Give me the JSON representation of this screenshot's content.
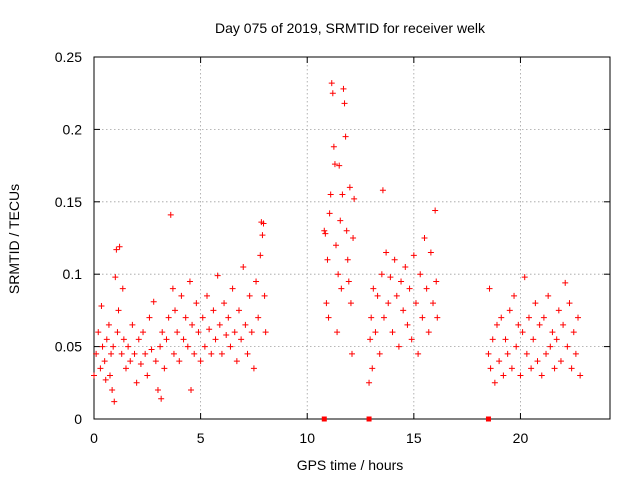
{
  "chart_data": {
    "type": "scatter",
    "title": "Day 075 of 2019, SRMTID for receiver welk",
    "xlabel": "GPS time / hours",
    "ylabel": "SRMTID / TECUs",
    "xlim": [
      0,
      24.2
    ],
    "ylim": [
      0,
      0.25
    ],
    "x_ticks": [
      0,
      5,
      10,
      15,
      20
    ],
    "y_ticks": [
      0,
      0.05,
      0.1,
      0.15,
      0.2,
      0.25
    ],
    "x_tick_labels": [
      "0",
      "5",
      "10",
      "15",
      "20"
    ],
    "y_tick_labels": [
      "0",
      "0.05",
      "0.1",
      "0.15",
      "0.2",
      "0.25"
    ],
    "grid": true,
    "marker": "+",
    "color": "#ff0000",
    "series": [
      {
        "name": "SRMTID",
        "points": [
          [
            0.0,
            0.03
          ],
          [
            0.1,
            0.045
          ],
          [
            0.2,
            0.06
          ],
          [
            0.3,
            0.035
          ],
          [
            0.35,
            0.078
          ],
          [
            0.4,
            0.05
          ],
          [
            0.5,
            0.04
          ],
          [
            0.55,
            0.027
          ],
          [
            0.6,
            0.055
          ],
          [
            0.7,
            0.065
          ],
          [
            0.75,
            0.03
          ],
          [
            0.8,
            0.045
          ],
          [
            0.85,
            0.02
          ],
          [
            0.9,
            0.05
          ],
          [
            0.95,
            0.012
          ],
          [
            1.0,
            0.098
          ],
          [
            1.05,
            0.117
          ],
          [
            1.1,
            0.06
          ],
          [
            1.15,
            0.075
          ],
          [
            1.2,
            0.119
          ],
          [
            1.3,
            0.045
          ],
          [
            1.35,
            0.09
          ],
          [
            1.4,
            0.055
          ],
          [
            1.5,
            0.035
          ],
          [
            1.6,
            0.05
          ],
          [
            1.7,
            0.04
          ],
          [
            1.8,
            0.065
          ],
          [
            1.9,
            0.045
          ],
          [
            2.0,
            0.025
          ],
          [
            2.1,
            0.055
          ],
          [
            2.2,
            0.038
          ],
          [
            2.3,
            0.06
          ],
          [
            2.4,
            0.045
          ],
          [
            2.5,
            0.03
          ],
          [
            2.6,
            0.07
          ],
          [
            2.7,
            0.048
          ],
          [
            2.8,
            0.081
          ],
          [
            2.9,
            0.04
          ],
          [
            3.0,
            0.02
          ],
          [
            3.1,
            0.05
          ],
          [
            3.15,
            0.014
          ],
          [
            3.2,
            0.06
          ],
          [
            3.3,
            0.035
          ],
          [
            3.4,
            0.055
          ],
          [
            3.5,
            0.07
          ],
          [
            3.6,
            0.141
          ],
          [
            3.7,
            0.09
          ],
          [
            3.75,
            0.045
          ],
          [
            3.8,
            0.075
          ],
          [
            3.9,
            0.06
          ],
          [
            4.0,
            0.04
          ],
          [
            4.1,
            0.085
          ],
          [
            4.2,
            0.055
          ],
          [
            4.3,
            0.07
          ],
          [
            4.4,
            0.05
          ],
          [
            4.5,
            0.095
          ],
          [
            4.55,
            0.02
          ],
          [
            4.6,
            0.065
          ],
          [
            4.7,
            0.045
          ],
          [
            4.8,
            0.08
          ],
          [
            4.9,
            0.06
          ],
          [
            5.0,
            0.04
          ],
          [
            5.1,
            0.07
          ],
          [
            5.2,
            0.05
          ],
          [
            5.3,
            0.085
          ],
          [
            5.4,
            0.062
          ],
          [
            5.5,
            0.045
          ],
          [
            5.6,
            0.075
          ],
          [
            5.7,
            0.055
          ],
          [
            5.8,
            0.099
          ],
          [
            5.9,
            0.065
          ],
          [
            6.0,
            0.045
          ],
          [
            6.1,
            0.08
          ],
          [
            6.2,
            0.058
          ],
          [
            6.3,
            0.07
          ],
          [
            6.4,
            0.05
          ],
          [
            6.5,
            0.09
          ],
          [
            6.6,
            0.06
          ],
          [
            6.7,
            0.04
          ],
          [
            6.8,
            0.075
          ],
          [
            6.9,
            0.055
          ],
          [
            7.0,
            0.105
          ],
          [
            7.1,
            0.065
          ],
          [
            7.2,
            0.045
          ],
          [
            7.3,
            0.085
          ],
          [
            7.4,
            0.06
          ],
          [
            7.5,
            0.035
          ],
          [
            7.6,
            0.095
          ],
          [
            7.7,
            0.07
          ],
          [
            7.8,
            0.113
          ],
          [
            7.85,
            0.136
          ],
          [
            7.9,
            0.127
          ],
          [
            7.95,
            0.135
          ],
          [
            8.0,
            0.085
          ],
          [
            8.05,
            0.06
          ],
          [
            10.8,
            0.13
          ],
          [
            10.85,
            0.128
          ],
          [
            10.9,
            0.08
          ],
          [
            10.95,
            0.11
          ],
          [
            11.0,
            0.07
          ],
          [
            11.05,
            0.142
          ],
          [
            11.1,
            0.155
          ],
          [
            11.15,
            0.232
          ],
          [
            11.2,
            0.225
          ],
          [
            11.25,
            0.188
          ],
          [
            11.3,
            0.176
          ],
          [
            11.35,
            0.12
          ],
          [
            11.4,
            0.06
          ],
          [
            11.45,
            0.1
          ],
          [
            11.5,
            0.175
          ],
          [
            11.55,
            0.137
          ],
          [
            11.6,
            0.09
          ],
          [
            11.65,
            0.155
          ],
          [
            11.7,
            0.228
          ],
          [
            11.75,
            0.218
          ],
          [
            11.8,
            0.195
          ],
          [
            11.85,
            0.13
          ],
          [
            11.9,
            0.11
          ],
          [
            11.95,
            0.095
          ],
          [
            12.0,
            0.16
          ],
          [
            12.05,
            0.08
          ],
          [
            12.1,
            0.045
          ],
          [
            12.15,
            0.125
          ],
          [
            12.2,
            0.152
          ],
          [
            12.9,
            0.025
          ],
          [
            12.95,
            0.055
          ],
          [
            13.0,
            0.07
          ],
          [
            13.05,
            0.035
          ],
          [
            13.1,
            0.09
          ],
          [
            13.2,
            0.06
          ],
          [
            13.3,
            0.085
          ],
          [
            13.4,
            0.045
          ],
          [
            13.5,
            0.1
          ],
          [
            13.55,
            0.158
          ],
          [
            13.6,
            0.07
          ],
          [
            13.7,
            0.115
          ],
          [
            13.8,
            0.08
          ],
          [
            13.9,
            0.098
          ],
          [
            14.0,
            0.06
          ],
          [
            14.1,
            0.11
          ],
          [
            14.2,
            0.085
          ],
          [
            14.3,
            0.05
          ],
          [
            14.4,
            0.095
          ],
          [
            14.5,
            0.075
          ],
          [
            14.6,
            0.105
          ],
          [
            14.7,
            0.065
          ],
          [
            14.8,
            0.09
          ],
          [
            14.9,
            0.055
          ],
          [
            15.0,
            0.113
          ],
          [
            15.1,
            0.08
          ],
          [
            15.2,
            0.045
          ],
          [
            15.3,
            0.1
          ],
          [
            15.4,
            0.07
          ],
          [
            15.5,
            0.125
          ],
          [
            15.6,
            0.09
          ],
          [
            15.7,
            0.06
          ],
          [
            15.8,
            0.115
          ],
          [
            15.9,
            0.08
          ],
          [
            16.0,
            0.144
          ],
          [
            16.05,
            0.095
          ],
          [
            16.1,
            0.07
          ],
          [
            18.5,
            0.045
          ],
          [
            18.55,
            0.09
          ],
          [
            18.6,
            0.035
          ],
          [
            18.7,
            0.055
          ],
          [
            18.8,
            0.025
          ],
          [
            18.9,
            0.065
          ],
          [
            19.0,
            0.04
          ],
          [
            19.1,
            0.07
          ],
          [
            19.2,
            0.03
          ],
          [
            19.3,
            0.055
          ],
          [
            19.4,
            0.045
          ],
          [
            19.5,
            0.075
          ],
          [
            19.6,
            0.035
          ],
          [
            19.7,
            0.085
          ],
          [
            19.8,
            0.05
          ],
          [
            19.9,
            0.065
          ],
          [
            20.0,
            0.03
          ],
          [
            20.1,
            0.06
          ],
          [
            20.2,
            0.098
          ],
          [
            20.3,
            0.045
          ],
          [
            20.4,
            0.07
          ],
          [
            20.5,
            0.035
          ],
          [
            20.6,
            0.055
          ],
          [
            20.7,
            0.08
          ],
          [
            20.8,
            0.04
          ],
          [
            20.9,
            0.065
          ],
          [
            21.0,
            0.03
          ],
          [
            21.1,
            0.07
          ],
          [
            21.2,
            0.045
          ],
          [
            21.3,
            0.085
          ],
          [
            21.4,
            0.05
          ],
          [
            21.5,
            0.06
          ],
          [
            21.6,
            0.035
          ],
          [
            21.7,
            0.055
          ],
          [
            21.8,
            0.075
          ],
          [
            21.9,
            0.04
          ],
          [
            22.0,
            0.065
          ],
          [
            22.1,
            0.094
          ],
          [
            22.2,
            0.05
          ],
          [
            22.3,
            0.08
          ],
          [
            22.4,
            0.035
          ],
          [
            22.5,
            0.06
          ],
          [
            22.6,
            0.045
          ],
          [
            22.7,
            0.07
          ],
          [
            22.8,
            0.03
          ]
        ]
      }
    ],
    "baseline_markers": [
      10.8,
      12.9,
      18.5
    ]
  }
}
